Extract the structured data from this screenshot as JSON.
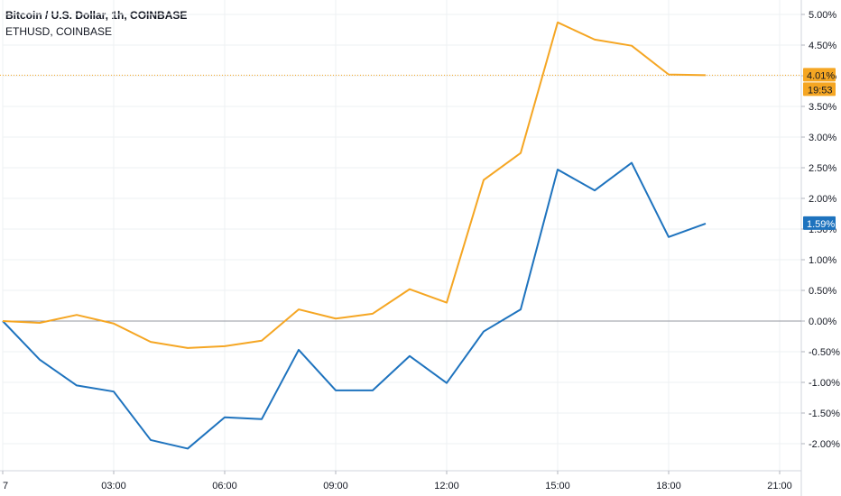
{
  "legend": {
    "main_symbol": "Bitcoin / U.S. Dollar, 1h, COINBASE",
    "compare_symbol": "ETHUSD, COINBASE"
  },
  "colors": {
    "btc": "#1e73be",
    "eth": "#f5a623",
    "zero_line": "#9598a1"
  },
  "chart_data": {
    "type": "line",
    "x": [
      "00:00",
      "01:00",
      "02:00",
      "03:00",
      "04:00",
      "05:00",
      "06:00",
      "07:00",
      "08:00",
      "09:00",
      "10:00",
      "11:00",
      "12:00",
      "13:00",
      "14:00",
      "15:00",
      "16:00",
      "17:00",
      "18:00",
      "19:00"
    ],
    "series": [
      {
        "name": "Bitcoin / U.S. Dollar, 1h, COINBASE",
        "color": "#1e73be",
        "values": [
          0.0,
          -0.63,
          -1.05,
          -1.15,
          -1.94,
          -2.08,
          -1.57,
          -1.6,
          -0.47,
          -1.13,
          -1.13,
          -0.57,
          -1.01,
          -0.17,
          0.19,
          2.47,
          2.13,
          2.58,
          1.37,
          1.59
        ]
      },
      {
        "name": "ETHUSD, COINBASE",
        "color": "#f5a623",
        "values": [
          0.0,
          -0.03,
          0.1,
          -0.04,
          -0.34,
          -0.44,
          -0.41,
          -0.32,
          0.19,
          0.04,
          0.12,
          0.52,
          0.3,
          2.3,
          2.74,
          4.87,
          4.59,
          4.49,
          4.02,
          4.01
        ]
      }
    ],
    "yticks": [
      "5.00%",
      "4.50%",
      "4.00%",
      "3.50%",
      "3.00%",
      "2.50%",
      "2.00%",
      "1.50%",
      "1.00%",
      "0.50%",
      "0.00%",
      "-0.50%",
      "-1.00%",
      "-1.50%",
      "-2.00%"
    ],
    "ytick_values": [
      5.0,
      4.5,
      4.0,
      3.5,
      3.0,
      2.5,
      2.0,
      1.5,
      1.0,
      0.5,
      0.0,
      -0.5,
      -1.0,
      -1.5,
      -2.0
    ],
    "xticks": [
      "7",
      "03:00",
      "06:00",
      "09:00",
      "12:00",
      "15:00",
      "18:00",
      "21:00"
    ],
    "xtick_hours": [
      0,
      3,
      6,
      9,
      12,
      15,
      18,
      21
    ],
    "ylim": [
      -2.55,
      5.3
    ],
    "xlim_hours": [
      0,
      21.5
    ],
    "grid": true,
    "eth_last_label": "4.01%",
    "eth_countdown": "19:53",
    "btc_last_label": "1.59%"
  }
}
